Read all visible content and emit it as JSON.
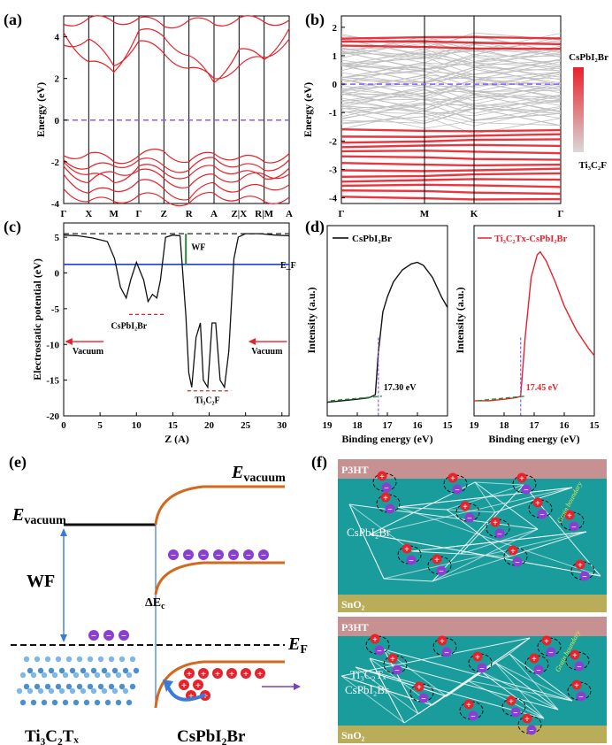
{
  "panel_labels": {
    "a": "(a)",
    "b": "(b)",
    "c": "(c)",
    "d": "(d)",
    "e": "(e)",
    "f": "(f)"
  },
  "colors": {
    "band": "#e8212a",
    "fermi": "#8a5cf0",
    "grid_band": "#bfbfbf",
    "potential": "#111111",
    "fermi_c": "#1f3fe0",
    "wf": "#1f8f2a",
    "teal": "#1a9c9c",
    "p3ht": "#c89191",
    "sno2": "#b9ad5a",
    "electron": "#8a3fd0",
    "hole": "#e8212a",
    "orange": "#d2691e",
    "arrow_blue": "#3a7bd5"
  },
  "chart_data": [
    {
      "panel": "a",
      "type": "line",
      "title": "",
      "xlabel": "",
      "ylabel": "Energy (eV)",
      "ylim": [
        -4,
        5
      ],
      "yticks": [
        "-4",
        "-2",
        "0",
        "2",
        "4"
      ],
      "xticks": [
        "Γ",
        "X",
        "M",
        "Γ",
        "Z",
        "R",
        "A",
        "Z|X",
        "R|M",
        "A"
      ],
      "fermi_level": 0
    },
    {
      "panel": "b",
      "type": "line",
      "title": "",
      "xlabel": "",
      "ylabel": "Energy (eV)",
      "ylim": [
        -4.2,
        2.4
      ],
      "yticks": [
        "-4",
        "-3",
        "-2",
        "-1",
        "0",
        "1",
        "2"
      ],
      "xticks": [
        "Γ",
        "M",
        "K",
        "Γ"
      ],
      "fermi_level": 0,
      "colorbar": {
        "top": "CsPbI₂Br",
        "bottom": "Ti₃C₂F"
      }
    },
    {
      "panel": "c",
      "type": "line",
      "title": "",
      "xlabel": "Z (A)",
      "ylabel": "Electrostatic potential (eV)",
      "xlim": [
        0,
        31
      ],
      "ylim": [
        -20,
        7
      ],
      "xticks": [
        "0",
        "5",
        "10",
        "15",
        "20",
        "25",
        "30"
      ],
      "yticks": [
        "-20",
        "-15",
        "-10",
        "-5",
        "0",
        "5"
      ],
      "vacuum_level": 5.5,
      "fermi_level": 1.2,
      "annotations": {
        "wf": "WF",
        "ef": "E_F",
        "cspbi2br": "CsPbI₂Br",
        "ti3c2f": "Ti₃C₂F",
        "vacuum_left": "Vacuum",
        "vacuum_right": "Vacuum"
      },
      "series": [
        {
          "x": [
            0,
            2,
            4,
            6,
            7,
            7.8,
            8.6,
            9.2,
            10,
            11,
            11.6,
            12.2,
            12.8,
            13.3,
            14,
            15,
            16,
            16.8,
            17.2,
            17.6,
            18.2,
            18.8,
            19.2,
            19.8,
            20.4,
            20.9,
            21.5,
            22.1,
            22.7,
            23.4,
            24,
            25,
            27,
            29,
            31
          ],
          "y": [
            5.3,
            5.2,
            4.9,
            4.4,
            2,
            -2,
            -3.5,
            -1,
            1.5,
            -1,
            -4,
            -3,
            -3.5,
            -1,
            5,
            5.3,
            5.2,
            -6,
            -14,
            -16,
            -9,
            -7,
            -15,
            -16,
            -7,
            -7,
            -15,
            -16,
            -11,
            2,
            5,
            5.5,
            5.5,
            5.3,
            5.2
          ]
        }
      ]
    },
    {
      "panel": "d1",
      "type": "line",
      "title": "",
      "xlabel": "Binding energy (eV)",
      "ylabel": "Intensity (a.u.)",
      "xlim": [
        19,
        15
      ],
      "xticks": [
        "19",
        "18",
        "17",
        "16",
        "15"
      ],
      "legend": "CsPbI₂Br",
      "cutoff_label": "17.30 eV",
      "cutoff": 17.3,
      "series": [
        {
          "x": [
            19,
            18.5,
            18,
            17.6,
            17.4,
            17.3,
            17.15,
            17,
            16.8,
            16.5,
            16.2,
            16,
            15.8,
            15.5,
            15.2,
            15
          ],
          "y": [
            0.02,
            0.03,
            0.04,
            0.05,
            0.07,
            0.35,
            0.62,
            0.72,
            0.82,
            0.9,
            0.94,
            0.95,
            0.93,
            0.85,
            0.72,
            0.65
          ]
        }
      ]
    },
    {
      "panel": "d2",
      "type": "line",
      "title": "",
      "xlabel": "Binding energy (eV)",
      "ylabel": "Intensity (a.u.)",
      "xlim": [
        19,
        15
      ],
      "xticks": [
        "19",
        "18",
        "17",
        "16",
        "15"
      ],
      "legend": "Ti₃C₂Tx-CsPbI₂Br",
      "cutoff_label": "17.45 eV",
      "cutoff": 17.45,
      "series": [
        {
          "x": [
            19,
            18.5,
            18,
            17.6,
            17.45,
            17.3,
            17.1,
            16.9,
            16.8,
            16.6,
            16.3,
            16,
            15.6,
            15.2,
            15
          ],
          "y": [
            0.03,
            0.03,
            0.04,
            0.05,
            0.06,
            0.45,
            0.85,
            1.0,
            1.02,
            0.96,
            0.82,
            0.66,
            0.5,
            0.38,
            0.33
          ]
        }
      ]
    }
  ],
  "diagram_e": {
    "evac_left": "E",
    "evac_left_sub": "vacuum",
    "evac_right": "E",
    "evac_right_sub": "vacuum",
    "wf": "WF",
    "delta_ec": "ΔE",
    "delta_ec_sub": "c",
    "ef": "E",
    "ef_sub": "F",
    "label_left": "Ti₃C₂Tₓ",
    "label_right": "CsPbI₂Br",
    "electron_sign": "−",
    "hole_sign": "+"
  },
  "diagram_f": {
    "top": {
      "p3ht": "P3HT",
      "layer": "CsPbI₂Br",
      "sno2": "SnO₂",
      "grain": "Grain boundary"
    },
    "bottom": {
      "p3ht": "P3HT",
      "layer1": "Ti₃C₂Tₓ",
      "layer2": "CsPbI₂Br",
      "sno2": "SnO₂",
      "grain": "Grain boundary"
    }
  }
}
